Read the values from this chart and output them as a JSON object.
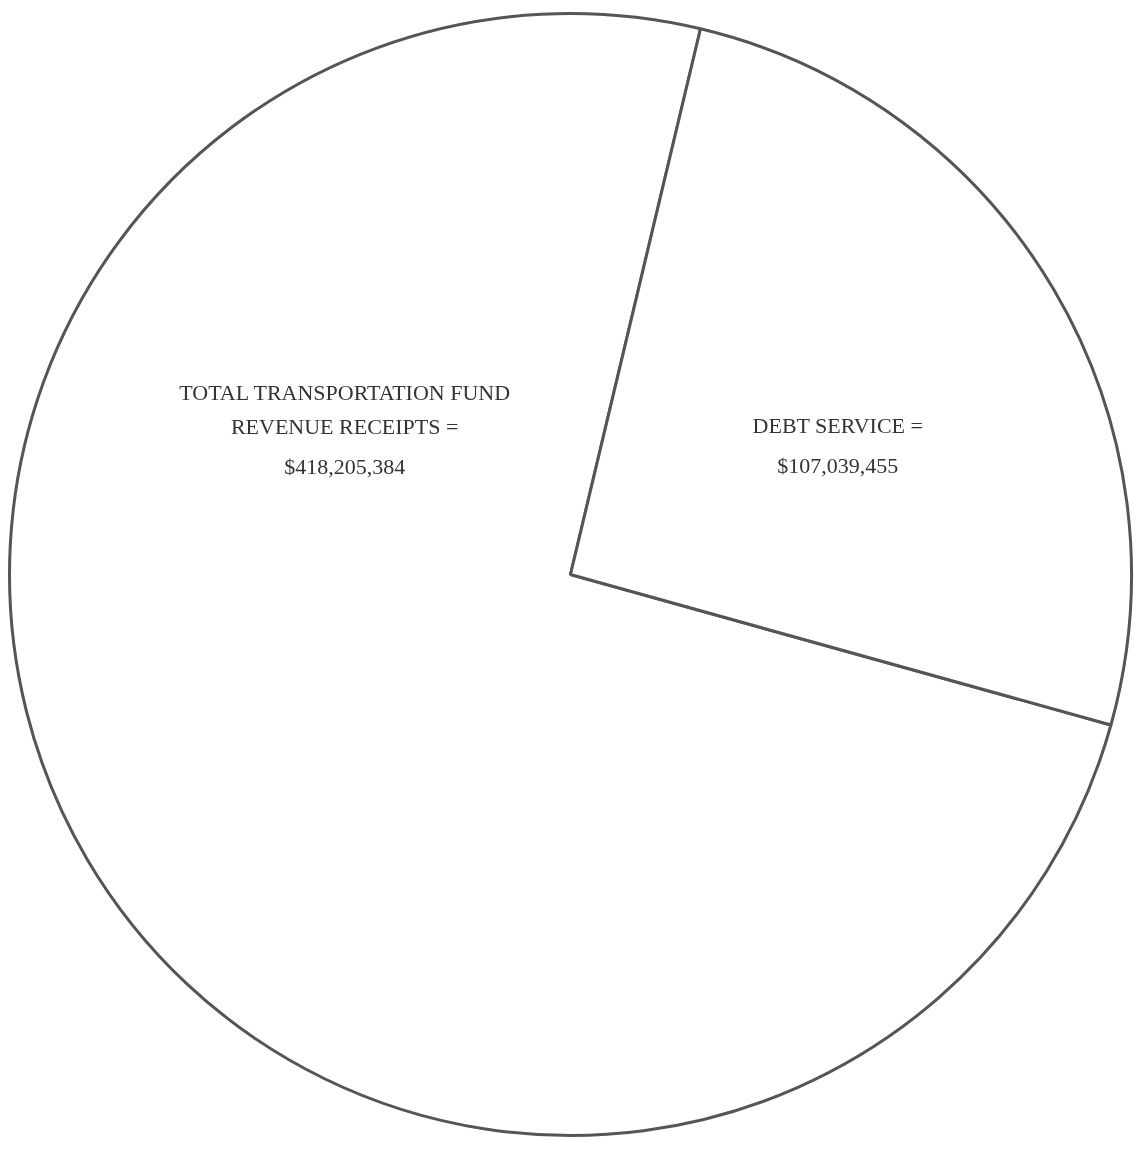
{
  "chart_data": {
    "type": "pie",
    "categories": [
      "TOTAL TRANSPORTATION FUND REVENUE RECEIPTS =",
      "DEBT SERVICE ="
    ],
    "values": [
      74.4,
      25.6
    ],
    "annotations": [
      "$418,205,384",
      "$107,039,455"
    ],
    "colors": [
      "#ffffff",
      "#ffffff"
    ],
    "legend": false
  }
}
